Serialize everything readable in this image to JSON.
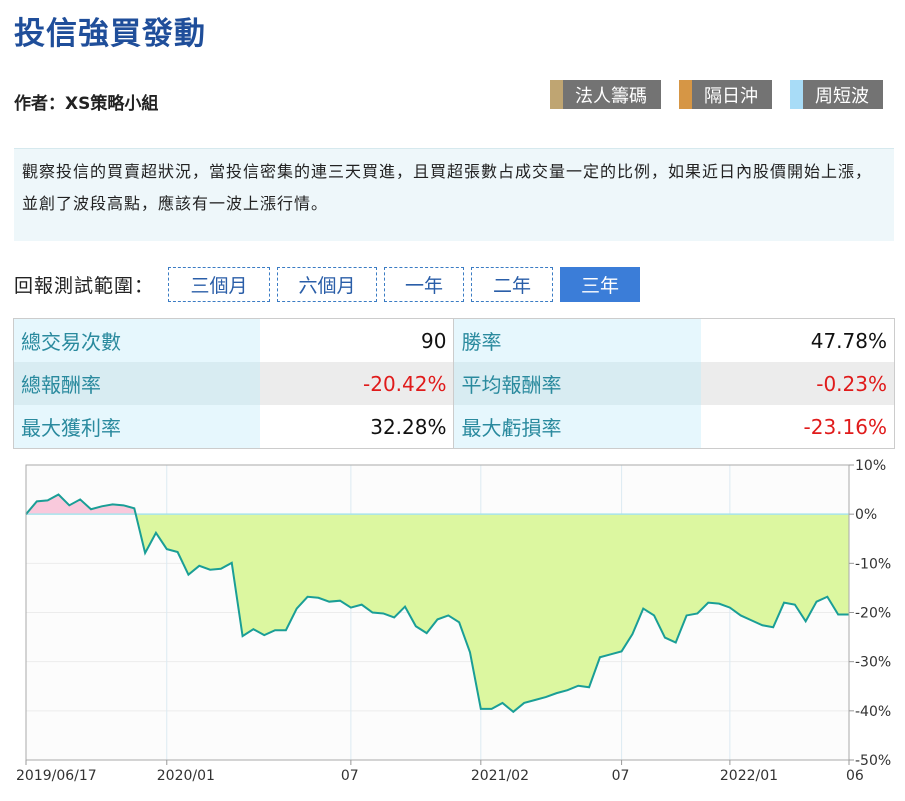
{
  "header": {
    "title": "投信強買發動",
    "author": "作者：XS策略小組"
  },
  "tags": [
    {
      "label": "法人籌碼",
      "color": "#bfa572"
    },
    {
      "label": "隔日沖",
      "color": "#d69645"
    },
    {
      "label": "周短波",
      "color": "#a8dcf7"
    }
  ],
  "description": "觀察投信的買賣超狀況，當投信密集的連三天買進，且買超張數占成交量一定的比例，如果近日內股價開始上漲，並創了波段高點，應該有一波上漲行情。",
  "range": {
    "label": "回報測試範圍：",
    "options": [
      {
        "label": "三個月",
        "active": false
      },
      {
        "label": "六個月",
        "active": false
      },
      {
        "label": "一年",
        "active": false
      },
      {
        "label": "二年",
        "active": false
      },
      {
        "label": "三年",
        "active": true
      }
    ]
  },
  "stats": [
    [
      {
        "label": "總交易次數",
        "value": "90",
        "negative": false
      },
      {
        "label": "勝率",
        "value": "47.78%",
        "negative": false
      }
    ],
    [
      {
        "label": "總報酬率",
        "value": "-20.42%",
        "negative": true
      },
      {
        "label": "平均報酬率",
        "value": "-0.23%",
        "negative": true
      }
    ],
    [
      {
        "label": "最大獲利率",
        "value": "32.28%",
        "negative": false
      },
      {
        "label": "最大虧損率",
        "value": "-23.16%",
        "negative": true
      }
    ]
  ],
  "chart_data": {
    "type": "area",
    "ylim": [
      -50,
      10
    ],
    "y_ticks": [
      "10%",
      "0%",
      "-10%",
      "-20%",
      "-30%",
      "-40%",
      "-50%"
    ],
    "y_tick_values": [
      10,
      0,
      -10,
      -20,
      -30,
      -40,
      -50
    ],
    "x_labels": [
      {
        "label": "2019/06/17",
        "index": 0
      },
      {
        "label": "2020/01",
        "index": 13
      },
      {
        "label": "07",
        "index": 30
      },
      {
        "label": "2021/02",
        "index": 42
      },
      {
        "label": "07",
        "index": 55
      },
      {
        "label": "2022/01",
        "index": 65
      },
      {
        "label": "06",
        "index": 76
      }
    ],
    "grid": true,
    "colors": {
      "line": "#1a9e96",
      "positive_fill": "#f9c9dc",
      "negative_fill": "#dcf7a0",
      "zero_line": "#a8e4ec"
    },
    "values": [
      0,
      2.6,
      2.8,
      4.0,
      1.8,
      3.0,
      1.0,
      1.6,
      2.0,
      1.8,
      1.2,
      -7.9,
      -3.8,
      -7.1,
      -7.7,
      -12.3,
      -10.5,
      -11.3,
      -11.1,
      -9.9,
      -24.8,
      -23.4,
      -24.6,
      -23.6,
      -23.6,
      -19.2,
      -16.8,
      -17.0,
      -17.8,
      -17.6,
      -19.0,
      -18.4,
      -20.0,
      -20.2,
      -21.0,
      -18.8,
      -22.8,
      -24.2,
      -21.4,
      -20.6,
      -22.0,
      -28.1,
      -39.6,
      -39.6,
      -38.4,
      -40.2,
      -38.4,
      -37.8,
      -37.2,
      -36.4,
      -35.8,
      -34.9,
      -35.2,
      -29.1,
      -28.5,
      -27.9,
      -24.4,
      -19.2,
      -20.6,
      -25.1,
      -26.1,
      -20.6,
      -20.2,
      -18.0,
      -18.2,
      -19.0,
      -20.6,
      -21.6,
      -22.6,
      -23.0,
      -18.0,
      -18.4,
      -21.8,
      -17.8,
      -16.8,
      -20.4,
      -20.4
    ]
  }
}
